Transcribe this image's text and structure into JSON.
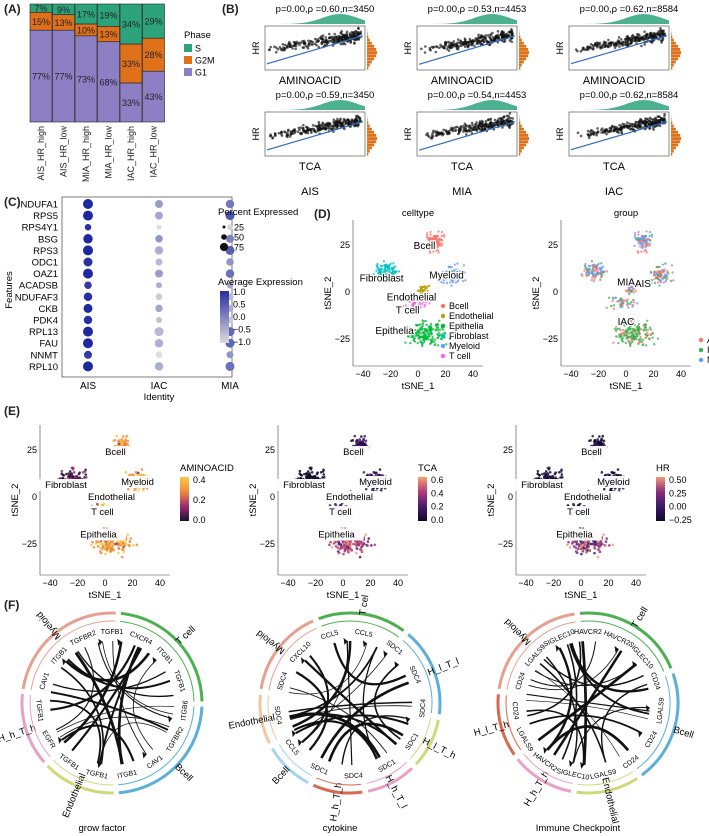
{
  "panels": {
    "A": "(A)",
    "B": "(B)",
    "C": "(C)",
    "D": "(D)",
    "E": "(E)",
    "F": "(F)"
  },
  "colors": {
    "S": "#2ca37a",
    "G2M": "#e0711b",
    "G1": "#8c7fc4",
    "AIS": "#f8766d",
    "IAC": "#35b24a",
    "MIA": "#619cff",
    "Bcell": "#f8766d",
    "Endothelial": "#b79f00",
    "Epithelia": "#00ba38",
    "Fibroblast": "#00bfc4",
    "Myeloid": "#619cff",
    "Tcell": "#f564e3"
  },
  "chart_data": [
    {
      "id": "A",
      "type": "bar",
      "stacked": true,
      "categories": [
        "AIS_HR_high",
        "AIS_HR_low",
        "MIA_HR_high",
        "MIA_HR_low",
        "IAC_HR_high",
        "IAC_HR_low"
      ],
      "series": [
        {
          "name": "G1",
          "values": [
            77,
            77,
            73,
            68,
            33,
            43
          ],
          "labels": [
            "77%",
            "77%",
            "73%",
            "68%",
            "33%",
            "43%"
          ]
        },
        {
          "name": "G2M",
          "values": [
            15,
            13,
            10,
            13,
            33,
            28
          ],
          "labels": [
            "15%",
            "13%",
            "10%",
            "13%",
            "33%",
            "28%"
          ]
        },
        {
          "name": "S",
          "values": [
            7,
            9,
            17,
            19,
            34,
            29
          ],
          "labels": [
            "7%",
            "9%",
            "17%",
            "19%",
            "34%",
            "29%"
          ]
        }
      ],
      "legend_title": "Phase",
      "legend": [
        "S",
        "G2M",
        "G1"
      ]
    },
    {
      "id": "B",
      "type": "scatter",
      "ylabel": "HR",
      "rows": [
        {
          "xlabel": "AMINOACID",
          "plots": [
            {
              "title": "p=0.00,ρ =0.60,n=3450",
              "group": "AIS"
            },
            {
              "title": "p=0.00,ρ =0.53,n=4453",
              "group": "MIA"
            },
            {
              "title": "p=0.00,ρ =0.62,n=8584",
              "group": "IAC"
            }
          ]
        },
        {
          "xlabel": "TCA",
          "plots": [
            {
              "title": "p=0.00,ρ =0.59,n=3450",
              "group": "AIS"
            },
            {
              "title": "p=0.00,ρ =0.54,n=4453",
              "group": "MIA"
            },
            {
              "title": "p=0.00,ρ =0.62,n=8584",
              "group": "IAC"
            }
          ]
        }
      ],
      "group_labels": [
        "AIS",
        "MIA",
        "IAC"
      ]
    },
    {
      "id": "C",
      "type": "scatter",
      "subtype": "dotplot",
      "ylabel": "Features",
      "xlabel": "Identity",
      "x": [
        "AIS",
        "IAC",
        "MIA"
      ],
      "features": [
        "NDUFA1",
        "RPS5",
        "RPS4Y1",
        "BSG",
        "RPS3",
        "ODC1",
        "OAZ1",
        "ACADSB",
        "NDUFAF3",
        "CKB",
        "PDK4",
        "RPL13",
        "FAU",
        "NNMT",
        "RPL10"
      ],
      "avg_expression": [
        [
          1.0,
          -0.3,
          0.1
        ],
        [
          1.0,
          -0.4,
          0.5
        ],
        [
          0.9,
          -1.0,
          -0.9
        ],
        [
          1.0,
          -0.2,
          0.0
        ],
        [
          1.0,
          -0.5,
          0.4
        ],
        [
          0.9,
          -0.6,
          -0.2
        ],
        [
          1.0,
          -0.3,
          0.2
        ],
        [
          0.8,
          -0.5,
          -0.4
        ],
        [
          0.9,
          -0.8,
          -0.6
        ],
        [
          1.0,
          -0.4,
          -0.5
        ],
        [
          0.9,
          -0.7,
          -0.8
        ],
        [
          1.0,
          -0.6,
          0.3
        ],
        [
          1.0,
          -0.5,
          0.3
        ],
        [
          0.8,
          -1.0,
          -0.2
        ],
        [
          1.0,
          -0.5,
          0.2
        ]
      ],
      "pct_expressed": [
        [
          80,
          60,
          65
        ],
        [
          80,
          60,
          70
        ],
        [
          45,
          30,
          35
        ],
        [
          75,
          55,
          60
        ],
        [
          80,
          65,
          70
        ],
        [
          70,
          50,
          55
        ],
        [
          80,
          60,
          65
        ],
        [
          55,
          40,
          45
        ],
        [
          65,
          45,
          50
        ],
        [
          70,
          55,
          50
        ],
        [
          65,
          40,
          45
        ],
        [
          80,
          70,
          70
        ],
        [
          80,
          65,
          70
        ],
        [
          60,
          45,
          50
        ],
        [
          80,
          65,
          70
        ]
      ],
      "legend_size_title": "Percent Expressed",
      "legend_sizes": [
        "25",
        "50",
        "75"
      ],
      "legend_color_title": "Average Expression",
      "legend_color_ticks": [
        "1.0",
        "0.5",
        "0.0",
        "−0.5",
        "−1.0"
      ]
    },
    {
      "id": "D",
      "type": "scatter",
      "subtype": "tsne",
      "xlabel": "tSNE_1",
      "ylabel": "tSNE_2",
      "xlim": [
        -45,
        45
      ],
      "ylim": [
        -45,
        40
      ],
      "x_ticks": [
        "−40",
        "−20",
        "0",
        "20",
        "40"
      ],
      "y_ticks": [
        "25",
        "0",
        "−25"
      ],
      "plots": [
        {
          "title": "celltype",
          "labels": [
            "Bcell",
            "Fibroblast",
            "Myeloid",
            "Endothelial",
            "T cell",
            "Epithelia"
          ],
          "legend": [
            "Bcell",
            "Endothelial",
            "Epithelia",
            "Fibroblast",
            "Myeloid",
            "T cell"
          ]
        },
        {
          "title": "group",
          "labels": [
            "MIA",
            "AIS",
            "IAC"
          ],
          "legend": [
            "AIS",
            "IAC",
            "MIA"
          ]
        }
      ]
    },
    {
      "id": "E",
      "type": "scatter",
      "subtype": "tsne-feature",
      "xlabel": "tSNE_1",
      "ylabel": "tSNE_2",
      "plots": [
        {
          "feature": "AMINOACID",
          "ticks": [
            "0.4",
            "0.2",
            "0.0"
          ]
        },
        {
          "feature": "TCA",
          "ticks": [
            "0.6",
            "0.4",
            "0.2",
            "0.0"
          ]
        },
        {
          "feature": "HR",
          "ticks": [
            "0.50",
            "0.25",
            "0.00",
            "−0.25"
          ]
        }
      ],
      "labels": [
        "Bcell",
        "Fibroblast",
        "Myeloid",
        "Endothelial",
        "T cell",
        "Epithelia"
      ]
    },
    {
      "id": "F",
      "type": "diagram",
      "subtype": "chord",
      "plots": [
        {
          "caption": "grow factor",
          "groups": [
            "Myeloid",
            "T cell",
            "Bcell",
            "Endothelial",
            "H_h_T_h"
          ],
          "genes": [
            "CAV1",
            "ITGB1",
            "TGFBR2",
            "TGFB1",
            "CXCR4",
            "ITGB1",
            "TGFB1",
            "ITGB6",
            "TGFBR2",
            "CAV1",
            "ITGB1",
            "TGFB1",
            "TGFB1",
            "EGFR",
            "TGFB1"
          ]
        },
        {
          "caption": "cytokine",
          "groups": [
            "Myeloid",
            "T cell",
            "H_l_T_l",
            "H_l_T_h",
            "H_h_T_l",
            "H_h_T_h",
            "Bcell",
            "Endothelial"
          ],
          "genes": [
            "SDC4",
            "CXCL10",
            "CCL5",
            "CCL5",
            "SDC1",
            "SDC4",
            "SDC4",
            "SDC1",
            "SDC1",
            "SDC4",
            "SDC1",
            "CCL5",
            "SDC4"
          ]
        },
        {
          "caption": "Immune Checkpoint",
          "groups": [
            "Myeloid",
            "T cell",
            "Bcell",
            "Endothelial",
            "H_h_T_h",
            "H_l_T_h"
          ],
          "genes": [
            "CD24",
            "LGALS9",
            "SIGLEC10",
            "HAVCR2",
            "HAVCR2",
            "SIGLEC10",
            "CD24",
            "LGALS9",
            "CD24",
            "CD24",
            "LGALS9",
            "SIGLEC10",
            "HAVCR2",
            "LGALS9",
            "CD24"
          ]
        }
      ]
    }
  ]
}
